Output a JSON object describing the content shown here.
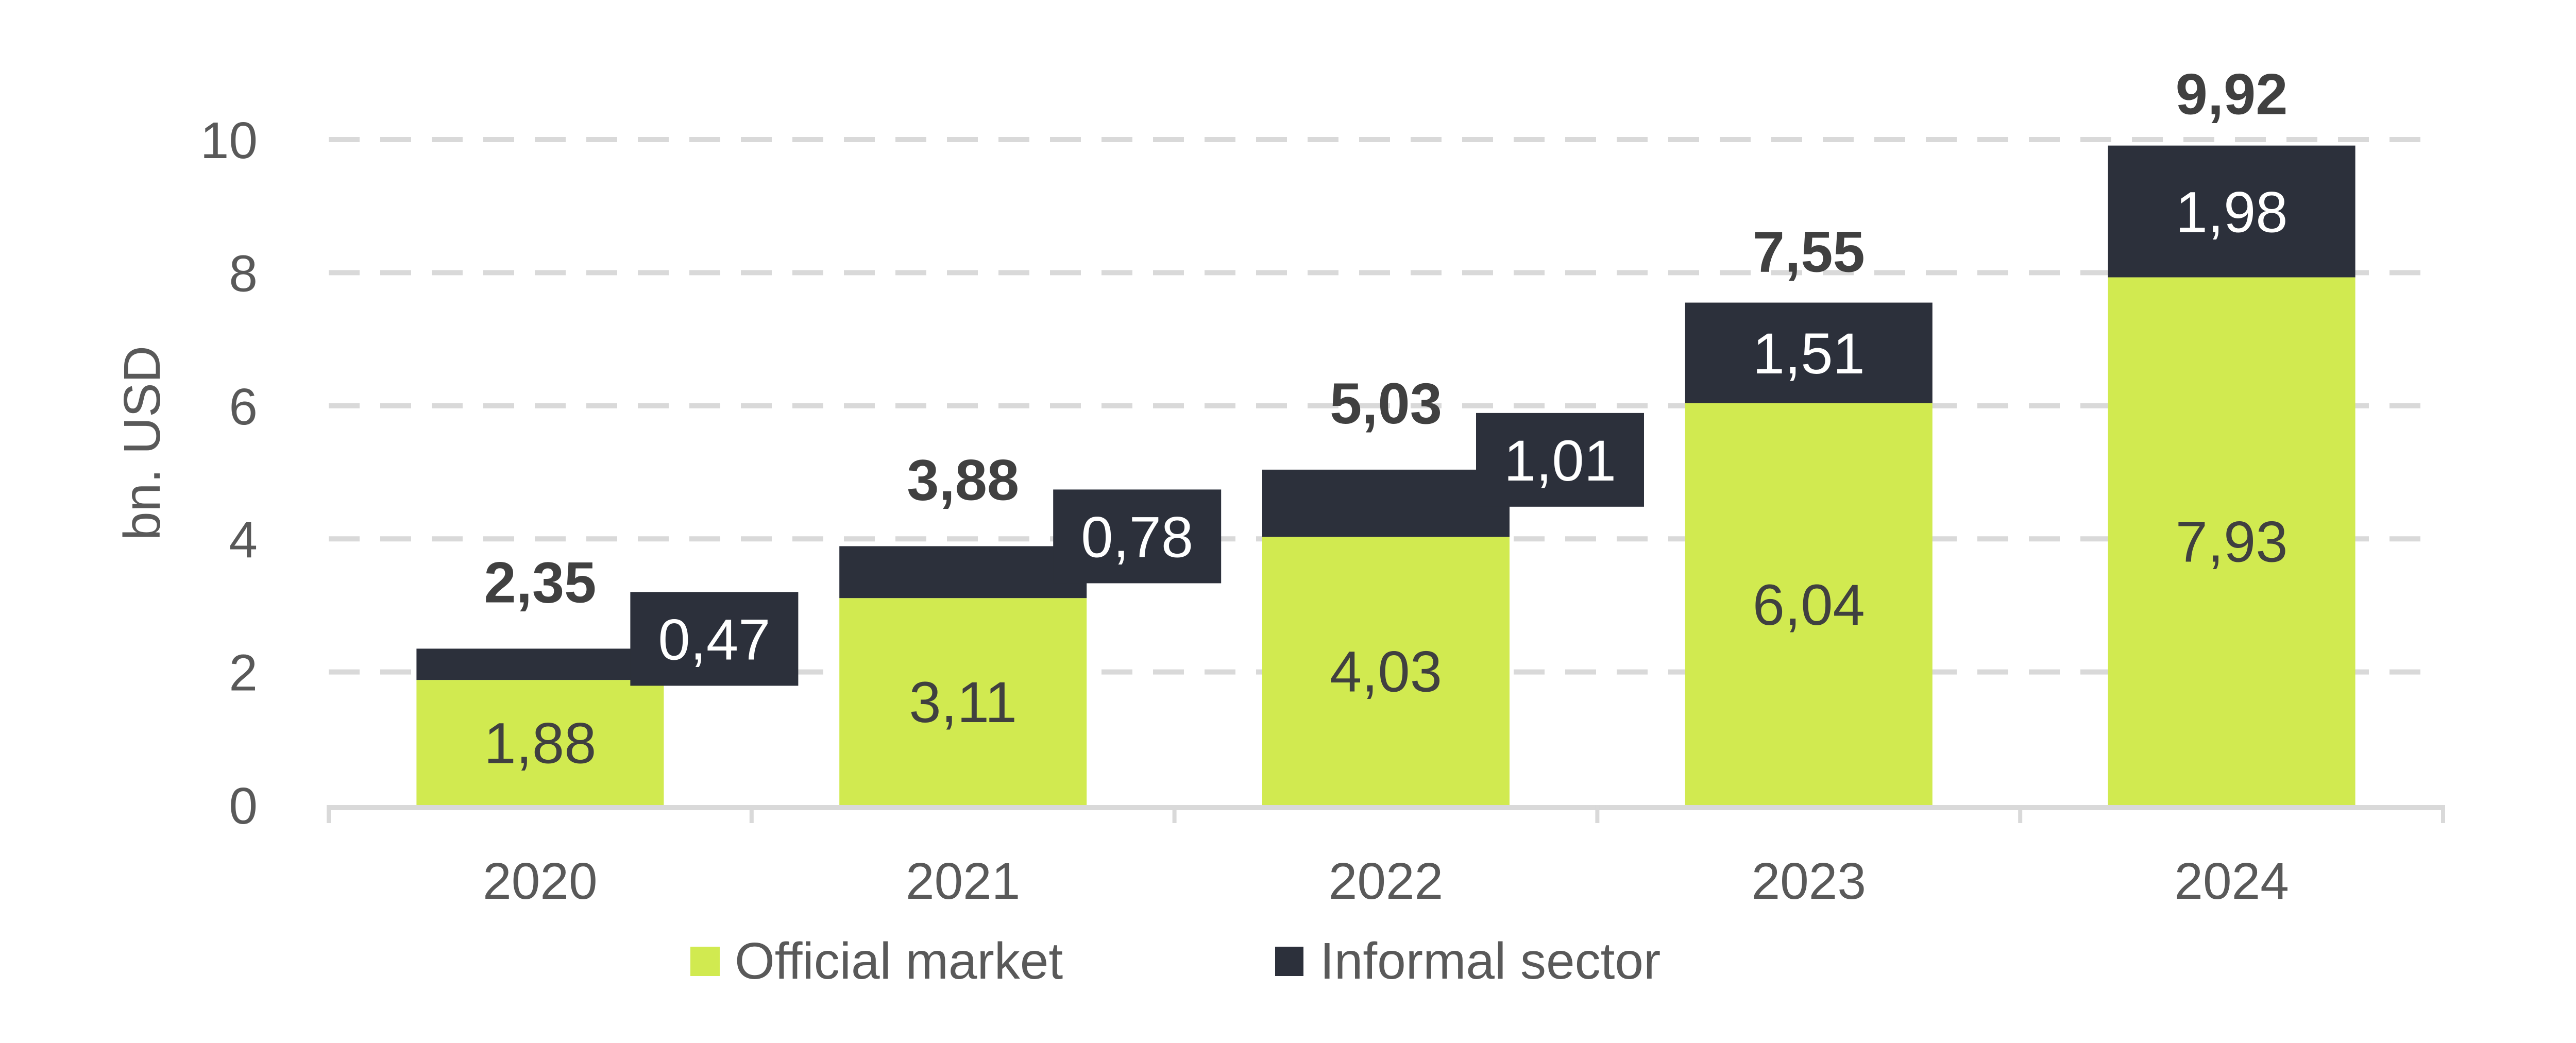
{
  "chart_data": {
    "type": "bar",
    "stacked": true,
    "title": "",
    "xlabel": "",
    "ylabel": "bn. USD",
    "ylim": [
      0,
      10
    ],
    "yticks": [
      0,
      2,
      4,
      6,
      8,
      10
    ],
    "ytick_labels": [
      "0",
      "2",
      "4",
      "6",
      "8",
      "10"
    ],
    "grid": true,
    "legend_position": "bottom",
    "categories": [
      "2020",
      "2021",
      "2022",
      "2023",
      "2024"
    ],
    "series": [
      {
        "name": "Official market",
        "color": "#D1EA50",
        "values": [
          1.88,
          3.11,
          4.03,
          6.04,
          7.93
        ],
        "labels": [
          "1,88",
          "3,11",
          "4,03",
          "6,04",
          "7,93"
        ]
      },
      {
        "name": "Informal sector",
        "color": "#2C303B",
        "values": [
          0.47,
          0.78,
          1.01,
          1.51,
          1.98
        ],
        "labels": [
          "0,47",
          "0,78",
          "1,01",
          "1,51",
          "1,98"
        ]
      }
    ],
    "totals": [
      2.35,
      3.88,
      5.03,
      7.55,
      9.92
    ],
    "total_labels": [
      "2,35",
      "3,88",
      "5,03",
      "7,55",
      "9,92"
    ]
  }
}
